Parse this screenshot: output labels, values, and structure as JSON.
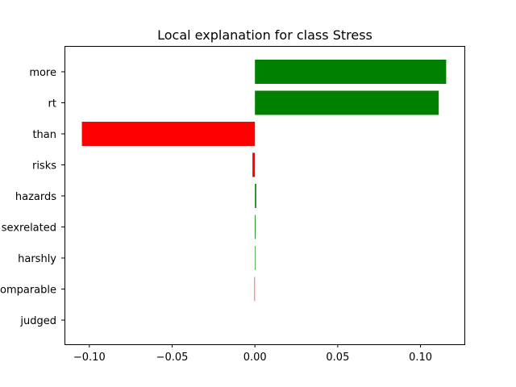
{
  "chart_data": {
    "type": "bar",
    "orientation": "horizontal",
    "title": "Local explanation for class Stress",
    "xlabel": "",
    "ylabel": "",
    "categories": [
      "more",
      "rt",
      "than",
      "risks",
      "hazards",
      "sexrelated",
      "harshly",
      "comparable",
      "judged"
    ],
    "values": [
      0.1155,
      0.111,
      -0.1045,
      -0.0015,
      0.0008,
      0.0004,
      0.0003,
      -0.0003,
      0.0
    ],
    "xlim": [
      -0.115,
      0.1265
    ],
    "xticks": [
      -0.1,
      -0.05,
      0.0,
      0.05,
      0.1
    ],
    "xtick_labels": [
      "−0.10",
      "−0.05",
      "0.00",
      "0.05",
      "0.10"
    ],
    "grid": false,
    "colors": {
      "positive": "#008000",
      "negative": "#ff0000",
      "axis": "#000000",
      "background": "#ffffff"
    }
  }
}
